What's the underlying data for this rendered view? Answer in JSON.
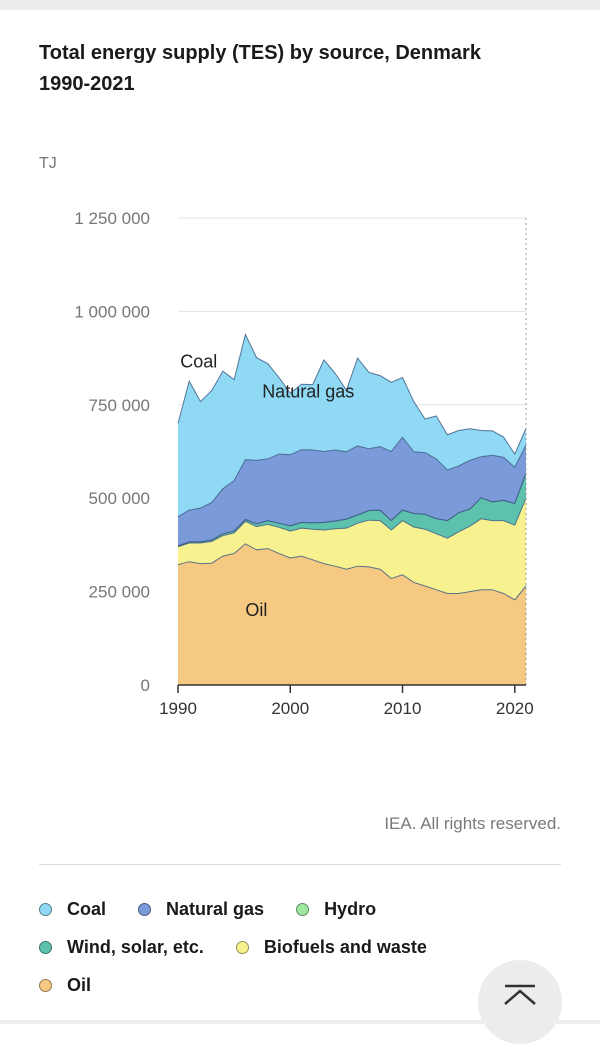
{
  "title": "Total energy supply (TES) by source, Denmark 1990-2021",
  "credit": "IEA. All rights reserved.",
  "legend": [
    {
      "label": "Coal",
      "color": "#8fd9f5"
    },
    {
      "label": "Natural gas",
      "color": "#7b9ad9"
    },
    {
      "label": "Hydro",
      "color": "#9ee89e"
    },
    {
      "label": "Wind, solar, etc.",
      "color": "#5cc1ad"
    },
    {
      "label": "Biofuels and waste",
      "color": "#f7f28f"
    },
    {
      "label": "Oil",
      "color": "#f5c982"
    }
  ],
  "chart_data": {
    "type": "area",
    "stacked": true,
    "title": "Total energy supply (TES) by source, Denmark 1990-2021",
    "ylabel": "TJ",
    "ylim": [
      0,
      1250000
    ],
    "yticks": [
      0,
      250000,
      500000,
      750000,
      1000000,
      1250000
    ],
    "ytick_labels": [
      "0",
      "250 000",
      "500 000",
      "750 000",
      "1 000 000",
      "1 250 000"
    ],
    "xlim": [
      1990,
      2021
    ],
    "xticks": [
      1990,
      2000,
      2010,
      2020
    ],
    "x": [
      1990,
      1991,
      1992,
      1993,
      1994,
      1995,
      1996,
      1997,
      1998,
      1999,
      2000,
      2001,
      2002,
      2003,
      2004,
      2005,
      2006,
      2007,
      2008,
      2009,
      2010,
      2011,
      2012,
      2013,
      2014,
      2015,
      2016,
      2017,
      2018,
      2019,
      2020,
      2021
    ],
    "series": [
      {
        "name": "Oil",
        "color": "#f5c982",
        "label_on_chart": "Oil",
        "values": [
          322000,
          330000,
          325000,
          326000,
          345000,
          352000,
          378000,
          362000,
          365000,
          352000,
          340000,
          345000,
          335000,
          325000,
          318000,
          310000,
          318000,
          316000,
          310000,
          285000,
          295000,
          275000,
          265000,
          255000,
          245000,
          245000,
          250000,
          255000,
          255000,
          245000,
          228000,
          265000
        ]
      },
      {
        "name": "Biofuels and waste",
        "color": "#f7f28f",
        "values": [
          48000,
          50000,
          55000,
          58000,
          55000,
          55000,
          60000,
          62000,
          65000,
          70000,
          72000,
          75000,
          82000,
          90000,
          100000,
          110000,
          115000,
          125000,
          130000,
          130000,
          145000,
          148000,
          152000,
          150000,
          148000,
          165000,
          175000,
          190000,
          185000,
          195000,
          200000,
          235000
        ]
      },
      {
        "name": "Wind, solar, etc.",
        "color": "#5cc1ad",
        "values": [
          2000,
          3000,
          3500,
          4000,
          5000,
          5000,
          5000,
          7000,
          10000,
          11000,
          14000,
          15000,
          17000,
          20000,
          21000,
          24000,
          22000,
          26000,
          28000,
          25000,
          28000,
          36000,
          40000,
          40000,
          47000,
          51000,
          46000,
          56000,
          50000,
          54000,
          58000,
          67000
        ]
      },
      {
        "name": "Hydro",
        "color": "#9ee89e",
        "values": [
          100,
          100,
          100,
          100,
          100,
          100,
          100,
          100,
          100,
          100,
          100,
          100,
          100,
          100,
          100,
          100,
          100,
          100,
          100,
          100,
          100,
          100,
          100,
          100,
          100,
          100,
          100,
          100,
          100,
          100,
          100,
          100
        ]
      },
      {
        "name": "Natural gas",
        "color": "#7b9ad9",
        "label_on_chart": "Natural gas",
        "values": [
          78000,
          85000,
          90000,
          100000,
          120000,
          135000,
          160000,
          170000,
          165000,
          185000,
          190000,
          195000,
          195000,
          190000,
          190000,
          180000,
          185000,
          165000,
          170000,
          185000,
          195000,
          165000,
          165000,
          160000,
          135000,
          125000,
          130000,
          110000,
          125000,
          115000,
          97000,
          75000
        ]
      },
      {
        "name": "Coal",
        "color": "#8fd9f5",
        "label_on_chart": "Coal",
        "values": [
          250000,
          345000,
          285000,
          300000,
          315000,
          270000,
          335000,
          275000,
          255000,
          205000,
          165000,
          175000,
          175000,
          245000,
          205000,
          165000,
          235000,
          205000,
          190000,
          185000,
          160000,
          135000,
          90000,
          115000,
          95000,
          95000,
          85000,
          70000,
          65000,
          55000,
          35000,
          45000
        ]
      }
    ]
  }
}
